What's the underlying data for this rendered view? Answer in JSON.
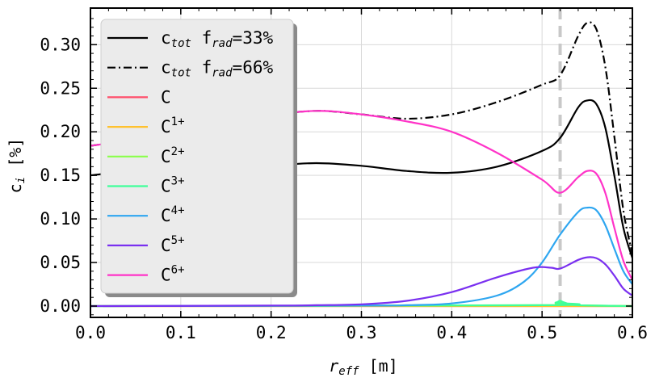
{
  "chart_data": {
    "type": "line",
    "xlabel_main": "r",
    "xlabel_sub": "eff",
    "xlabel_unit": " [m]",
    "ylabel_main": "c",
    "ylabel_sub": "i",
    "ylabel_unit": " [%]",
    "xlim": [
      0.0,
      0.6
    ],
    "ylim": [
      -0.013,
      0.342
    ],
    "x_ticks": [
      "0.0",
      "0.1",
      "0.2",
      "0.3",
      "0.4",
      "0.5",
      "0.6"
    ],
    "y_ticks": [
      "0.00",
      "0.05",
      "0.10",
      "0.15",
      "0.20",
      "0.25",
      "0.30"
    ],
    "grid": true,
    "legend_position": "upper-left",
    "vline": {
      "x": 0.52,
      "color": "#c8c8c8",
      "style": "dashed"
    },
    "series": [
      {
        "key": "ctot33",
        "legend_main": "c",
        "legend_sub": "tot",
        "legend_rest": " f",
        "legend_sub2": "rad",
        "legend_tail": "=33%",
        "color": "#000000",
        "dash": "solid",
        "x": [
          0,
          0.05,
          0.1,
          0.15,
          0.2,
          0.25,
          0.3,
          0.35,
          0.4,
          0.45,
          0.5,
          0.52,
          0.54,
          0.55,
          0.56,
          0.57,
          0.58,
          0.59,
          0.6
        ],
        "y": [
          0.15,
          0.155,
          0.154,
          0.157,
          0.161,
          0.164,
          0.161,
          0.155,
          0.153,
          0.16,
          0.178,
          0.193,
          0.228,
          0.236,
          0.232,
          0.205,
          0.15,
          0.09,
          0.055
        ]
      },
      {
        "key": "ctot66",
        "legend_main": "c",
        "legend_sub": "tot",
        "legend_rest": " f",
        "legend_sub2": "rad",
        "legend_tail": "=66%",
        "color": "#000000",
        "dash": "dashdot",
        "x": [
          0,
          0.05,
          0.1,
          0.15,
          0.2,
          0.25,
          0.3,
          0.35,
          0.4,
          0.45,
          0.5,
          0.52,
          0.54,
          0.55,
          0.56,
          0.57,
          0.58,
          0.59,
          0.6
        ],
        "y": [
          0.184,
          0.19,
          0.191,
          0.201,
          0.218,
          0.224,
          0.22,
          0.215,
          0.22,
          0.234,
          0.254,
          0.265,
          0.31,
          0.325,
          0.318,
          0.275,
          0.195,
          0.11,
          0.06
        ]
      },
      {
        "key": "C0",
        "legend_main": "C",
        "legend_sup": "",
        "color": "#ff4d6a",
        "dash": "solid",
        "x": [
          0,
          0.6
        ],
        "y": [
          0,
          0
        ]
      },
      {
        "key": "C1",
        "legend_main": "C",
        "legend_sup": "1+",
        "color": "#ffc12e",
        "dash": "solid",
        "x": [
          0,
          0.5,
          0.52,
          0.53,
          0.6
        ],
        "y": [
          0,
          0,
          0.001,
          0,
          0
        ]
      },
      {
        "key": "C2",
        "legend_main": "C",
        "legend_sup": "2+",
        "color": "#8aff4a",
        "dash": "solid",
        "x": [
          0,
          0.5,
          0.515,
          0.52,
          0.525,
          0.54,
          0.6
        ],
        "y": [
          0,
          0.001,
          0.003,
          0.004,
          0.003,
          0.001,
          0
        ]
      },
      {
        "key": "C3",
        "legend_main": "C",
        "legend_sup": "3+",
        "color": "#3fff9a",
        "dash": "solid",
        "x": [
          0,
          0.5,
          0.515,
          0.52,
          0.525,
          0.54,
          0.6
        ],
        "y": [
          0,
          0.001,
          0.004,
          0.006,
          0.004,
          0.001,
          0
        ]
      },
      {
        "key": "C4",
        "legend_main": "C",
        "legend_sup": "4+",
        "color": "#2ea6f0",
        "dash": "solid",
        "x": [
          0,
          0.3,
          0.35,
          0.4,
          0.45,
          0.48,
          0.5,
          0.52,
          0.54,
          0.55,
          0.56,
          0.57,
          0.58,
          0.59,
          0.6
        ],
        "y": [
          0,
          0.0005,
          0.001,
          0.003,
          0.012,
          0.028,
          0.05,
          0.082,
          0.108,
          0.113,
          0.11,
          0.093,
          0.066,
          0.04,
          0.025
        ]
      },
      {
        "key": "C5",
        "legend_main": "C",
        "legend_sup": "5+",
        "color": "#7a30f0",
        "dash": "solid",
        "x": [
          0,
          0.2,
          0.25,
          0.3,
          0.35,
          0.4,
          0.45,
          0.49,
          0.51,
          0.52,
          0.54,
          0.55,
          0.56,
          0.57,
          0.58,
          0.59,
          0.6
        ],
        "y": [
          0,
          0.0005,
          0.001,
          0.002,
          0.006,
          0.016,
          0.033,
          0.044,
          0.044,
          0.043,
          0.053,
          0.056,
          0.055,
          0.048,
          0.035,
          0.02,
          0.012
        ]
      },
      {
        "key": "C6",
        "legend_main": "C",
        "legend_sup": "6+",
        "color": "#ff33c8",
        "dash": "solid",
        "x": [
          0,
          0.05,
          0.1,
          0.15,
          0.2,
          0.25,
          0.3,
          0.35,
          0.4,
          0.45,
          0.5,
          0.52,
          0.54,
          0.55,
          0.56,
          0.57,
          0.58,
          0.59,
          0.6
        ],
        "y": [
          0.184,
          0.19,
          0.191,
          0.201,
          0.218,
          0.224,
          0.22,
          0.212,
          0.2,
          0.176,
          0.145,
          0.13,
          0.148,
          0.155,
          0.152,
          0.13,
          0.09,
          0.052,
          0.03
        ]
      }
    ]
  }
}
